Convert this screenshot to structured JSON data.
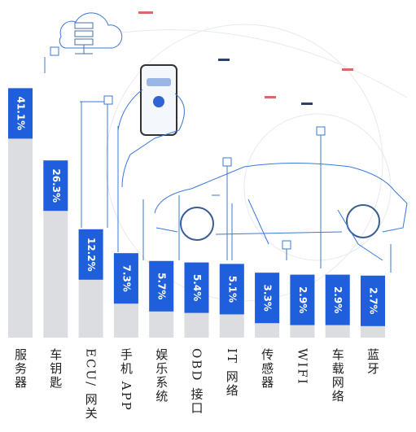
{
  "chart_data": {
    "type": "bar",
    "categories": [
      "服务器",
      "车钥匙",
      "ECU/ 网关",
      "手机 APP",
      "娱乐系统",
      "OBD 接口",
      "IT 网络",
      "传感器",
      "WIFI",
      "车载网络",
      "蓝牙"
    ],
    "values": [
      41.1,
      26.3,
      12.2,
      7.3,
      5.7,
      5.4,
      5.1,
      3.3,
      2.9,
      2.9,
      2.7
    ],
    "value_labels": [
      "41.1%",
      "26.3%",
      "12.2%",
      "7.3%",
      "5.7%",
      "5.4%",
      "5.1%",
      "3.3%",
      "2.9%",
      "2.9%",
      "2.7%"
    ],
    "color": "#1f5fdb"
  }
}
